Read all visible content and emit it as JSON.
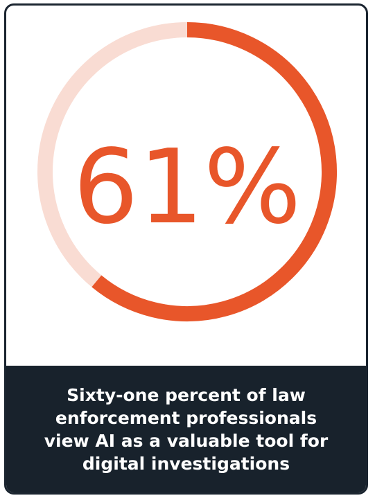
{
  "chart_data": {
    "type": "donut",
    "values": [
      61
    ],
    "value_labels": [
      "61%"
    ],
    "color": "#e8562a",
    "track_color": "#f9dcd3",
    "ylim": [
      0,
      100
    ],
    "caption": "Sixty-one percent of law enforcement professionals view AI as a valuable tool for digital investigations"
  }
}
